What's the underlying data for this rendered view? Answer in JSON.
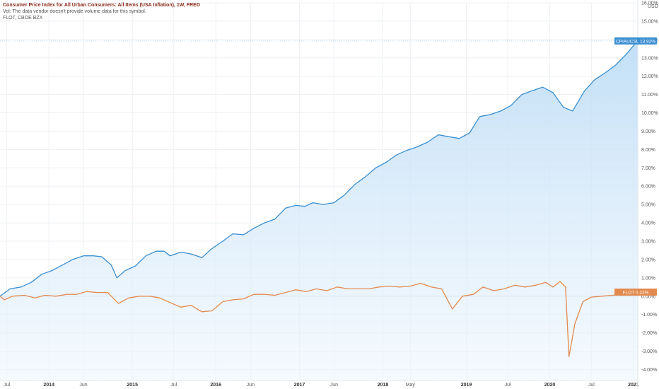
{
  "legend": {
    "main_title": "Consumer Price Index for All Urban Consumers: All Items (USA Inflation), 1W, FRED",
    "vol_note": "Vol: The data vendor doesn't provide volume data for this symbol.",
    "flot_title": "FLOT, CBOE BZX"
  },
  "colors": {
    "cpi_line": "#3a8fd0",
    "cpi_fill_top": "#bcdcf6",
    "cpi_fill_bottom": "#eef6fd",
    "flot_line": "#e38a4f",
    "grid": "#eef0f3",
    "axis_label": "#555555",
    "zero_line": "#c8d0da"
  },
  "chart_data": {
    "type": "line",
    "x_unit": "date",
    "y_unit": "percent",
    "ylim": [
      -4.6,
      16.0
    ],
    "xlim": [
      "2013-06-01",
      "2021-01-20"
    ],
    "y_axis_unit_label": "USD",
    "y_ticks": [
      {
        "value": 16,
        "label": "16.00%"
      },
      {
        "value": 15,
        "label": "15.00%"
      },
      {
        "value": 14,
        "label": "14.00%"
      },
      {
        "value": 13,
        "label": "13.00%"
      },
      {
        "value": 12,
        "label": "12.00%"
      },
      {
        "value": 11,
        "label": "11.00%"
      },
      {
        "value": 10,
        "label": "10.00%"
      },
      {
        "value": 9,
        "label": "9.00%"
      },
      {
        "value": 8,
        "label": "8.00%"
      },
      {
        "value": 7,
        "label": "7.00%"
      },
      {
        "value": 6,
        "label": "6.00%"
      },
      {
        "value": 5,
        "label": "5.00%"
      },
      {
        "value": 4,
        "label": "4.00%"
      },
      {
        "value": 3,
        "label": "3.00%"
      },
      {
        "value": 2,
        "label": "2.00%"
      },
      {
        "value": 1,
        "label": "1.00%"
      },
      {
        "value": 0,
        "label": "0.00%"
      },
      {
        "value": -1,
        "label": "-1.00%"
      },
      {
        "value": -2,
        "label": "-2.00%"
      },
      {
        "value": -3,
        "label": "-3.00%"
      },
      {
        "value": -4,
        "label": "-4.00%"
      }
    ],
    "x_ticks": [
      {
        "date": "2013-07-01",
        "label": "Jul",
        "bold": false
      },
      {
        "date": "2014-01-01",
        "label": "2014",
        "bold": true
      },
      {
        "date": "2014-06-01",
        "label": "Jun",
        "bold": false
      },
      {
        "date": "2015-01-01",
        "label": "2015",
        "bold": true
      },
      {
        "date": "2015-07-01",
        "label": "Jul",
        "bold": false
      },
      {
        "date": "2016-01-01",
        "label": "2016",
        "bold": true
      },
      {
        "date": "2016-06-01",
        "label": "Jun",
        "bold": false
      },
      {
        "date": "2017-01-01",
        "label": "2017",
        "bold": true
      },
      {
        "date": "2017-06-01",
        "label": "Jun",
        "bold": false
      },
      {
        "date": "2018-01-01",
        "label": "2018",
        "bold": true
      },
      {
        "date": "2018-05-01",
        "label": "May",
        "bold": false
      },
      {
        "date": "2019-01-01",
        "label": "2019",
        "bold": true
      },
      {
        "date": "2019-07-01",
        "label": "Jul",
        "bold": false
      },
      {
        "date": "2020-01-01",
        "label": "2020",
        "bold": true
      },
      {
        "date": "2020-07-01",
        "label": "Jul",
        "bold": false
      },
      {
        "date": "2021-01-01",
        "label": "2021",
        "bold": true
      }
    ],
    "series": [
      {
        "name": "CPIAUCSL",
        "last_label": "CPIAUCSL  13.92%",
        "last_value": 13.92,
        "points": [
          [
            "2013-06-01",
            0.0
          ],
          [
            "2013-07-15",
            0.4
          ],
          [
            "2013-09-01",
            0.5
          ],
          [
            "2013-10-15",
            0.75
          ],
          [
            "2013-12-01",
            1.2
          ],
          [
            "2014-01-15",
            1.4
          ],
          [
            "2014-03-01",
            1.7
          ],
          [
            "2014-04-15",
            2.0
          ],
          [
            "2014-06-01",
            2.2
          ],
          [
            "2014-07-15",
            2.2
          ],
          [
            "2014-08-20",
            2.15
          ],
          [
            "2014-10-01",
            1.7
          ],
          [
            "2014-10-25",
            1.0
          ],
          [
            "2014-12-01",
            1.4
          ],
          [
            "2015-01-15",
            1.65
          ],
          [
            "2015-03-01",
            2.2
          ],
          [
            "2015-04-15",
            2.45
          ],
          [
            "2015-05-20",
            2.45
          ],
          [
            "2015-06-15",
            2.2
          ],
          [
            "2015-08-01",
            2.4
          ],
          [
            "2015-09-15",
            2.3
          ],
          [
            "2015-11-01",
            2.1
          ],
          [
            "2015-12-15",
            2.6
          ],
          [
            "2016-02-01",
            3.0
          ],
          [
            "2016-03-15",
            3.4
          ],
          [
            "2016-05-01",
            3.35
          ],
          [
            "2016-06-15",
            3.7
          ],
          [
            "2016-08-01",
            4.0
          ],
          [
            "2016-09-15",
            4.2
          ],
          [
            "2016-11-01",
            4.8
          ],
          [
            "2016-12-15",
            4.95
          ],
          [
            "2017-01-25",
            4.9
          ],
          [
            "2017-03-01",
            5.1
          ],
          [
            "2017-04-15",
            5.0
          ],
          [
            "2017-06-01",
            5.1
          ],
          [
            "2017-07-15",
            5.5
          ],
          [
            "2017-09-01",
            6.1
          ],
          [
            "2017-10-15",
            6.5
          ],
          [
            "2017-12-01",
            7.0
          ],
          [
            "2018-01-15",
            7.3
          ],
          [
            "2018-03-01",
            7.7
          ],
          [
            "2018-04-15",
            7.95
          ],
          [
            "2018-06-01",
            8.15
          ],
          [
            "2018-07-15",
            8.4
          ],
          [
            "2018-09-01",
            8.8
          ],
          [
            "2018-10-15",
            8.7
          ],
          [
            "2018-12-01",
            8.6
          ],
          [
            "2019-01-15",
            8.9
          ],
          [
            "2019-03-01",
            9.8
          ],
          [
            "2019-04-15",
            9.9
          ],
          [
            "2019-06-01",
            10.1
          ],
          [
            "2019-07-15",
            10.4
          ],
          [
            "2019-09-01",
            11.0
          ],
          [
            "2019-10-15",
            11.2
          ],
          [
            "2019-12-01",
            11.4
          ],
          [
            "2020-01-15",
            11.1
          ],
          [
            "2020-03-01",
            10.3
          ],
          [
            "2020-04-10",
            10.1
          ],
          [
            "2020-06-01",
            11.2
          ],
          [
            "2020-07-15",
            11.8
          ],
          [
            "2020-09-01",
            12.2
          ],
          [
            "2020-10-15",
            12.6
          ],
          [
            "2020-12-01",
            13.2
          ],
          [
            "2021-01-18",
            13.92
          ]
        ]
      },
      {
        "name": "FLOT",
        "last_label": "FLOT  0.22%",
        "last_value": 0.22,
        "points": [
          [
            "2013-06-01",
            0.0
          ],
          [
            "2013-06-20",
            -0.2
          ],
          [
            "2013-07-25",
            0.0
          ],
          [
            "2013-09-15",
            0.05
          ],
          [
            "2013-11-01",
            -0.1
          ],
          [
            "2013-12-15",
            0.05
          ],
          [
            "2014-02-01",
            0.0
          ],
          [
            "2014-03-20",
            0.1
          ],
          [
            "2014-05-01",
            0.1
          ],
          [
            "2014-06-15",
            0.25
          ],
          [
            "2014-08-01",
            0.2
          ],
          [
            "2014-09-15",
            0.2
          ],
          [
            "2014-11-01",
            -0.4
          ],
          [
            "2014-12-15",
            -0.1
          ],
          [
            "2015-02-01",
            0.0
          ],
          [
            "2015-03-20",
            0.0
          ],
          [
            "2015-05-01",
            -0.1
          ],
          [
            "2015-06-15",
            -0.35
          ],
          [
            "2015-08-01",
            -0.6
          ],
          [
            "2015-09-15",
            -0.5
          ],
          [
            "2015-11-01",
            -0.85
          ],
          [
            "2015-12-15",
            -0.8
          ],
          [
            "2016-02-01",
            -0.3
          ],
          [
            "2016-03-15",
            -0.2
          ],
          [
            "2016-05-01",
            -0.15
          ],
          [
            "2016-06-15",
            0.1
          ],
          [
            "2016-08-01",
            0.1
          ],
          [
            "2016-09-15",
            0.05
          ],
          [
            "2016-11-01",
            0.2
          ],
          [
            "2016-12-15",
            0.35
          ],
          [
            "2017-02-01",
            0.25
          ],
          [
            "2017-03-15",
            0.4
          ],
          [
            "2017-05-01",
            0.3
          ],
          [
            "2017-06-15",
            0.5
          ],
          [
            "2017-08-01",
            0.4
          ],
          [
            "2017-09-15",
            0.4
          ],
          [
            "2017-11-01",
            0.4
          ],
          [
            "2017-12-15",
            0.5
          ],
          [
            "2018-02-01",
            0.55
          ],
          [
            "2018-03-15",
            0.5
          ],
          [
            "2018-05-01",
            0.55
          ],
          [
            "2018-06-15",
            0.7
          ],
          [
            "2018-08-01",
            0.5
          ],
          [
            "2018-09-15",
            0.4
          ],
          [
            "2018-11-01",
            -0.7
          ],
          [
            "2018-12-15",
            0.0
          ],
          [
            "2019-02-01",
            0.1
          ],
          [
            "2019-03-15",
            0.5
          ],
          [
            "2019-05-01",
            0.3
          ],
          [
            "2019-06-15",
            0.4
          ],
          [
            "2019-08-01",
            0.6
          ],
          [
            "2019-09-15",
            0.5
          ],
          [
            "2019-11-01",
            0.6
          ],
          [
            "2019-12-15",
            0.75
          ],
          [
            "2020-01-15",
            0.5
          ],
          [
            "2020-02-15",
            0.8
          ],
          [
            "2020-03-10",
            0.5
          ],
          [
            "2020-03-25",
            -3.3
          ],
          [
            "2020-04-20",
            -1.5
          ],
          [
            "2020-05-25",
            -0.3
          ],
          [
            "2020-07-01",
            -0.05
          ],
          [
            "2020-08-15",
            0.0
          ],
          [
            "2020-10-01",
            0.05
          ],
          [
            "2020-11-15",
            0.1
          ],
          [
            "2021-01-18",
            0.22
          ]
        ]
      }
    ]
  }
}
